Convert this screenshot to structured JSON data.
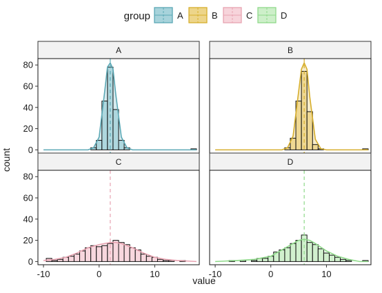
{
  "chart_data": {
    "type": "histogram",
    "xlabel": "value",
    "ylabel": "count",
    "xlim": [
      -11,
      18
    ],
    "ylim": [
      -3,
      86
    ],
    "xticks": [
      -10,
      0,
      10
    ],
    "yticks": [
      0,
      20,
      40,
      60,
      80
    ],
    "bin_width": 1,
    "legend": {
      "title": "group",
      "placement": "top",
      "entries": [
        "A",
        "B",
        "C",
        "D"
      ]
    },
    "panels": [
      {
        "name": "A",
        "color": "#5BA8B5",
        "fill": "#A7D3DB",
        "mean": 2,
        "bins": [
          {
            "x": -1,
            "y": 2
          },
          {
            "x": 0,
            "y": 9
          },
          {
            "x": 1,
            "y": 46
          },
          {
            "x": 2,
            "y": 78
          },
          {
            "x": 3,
            "y": 38
          },
          {
            "x": 4,
            "y": 9
          },
          {
            "x": 5,
            "y": 2
          },
          {
            "x": 17,
            "y": 1
          }
        ],
        "density": [
          [
            -10,
            0
          ],
          [
            -2,
            0
          ],
          [
            -1,
            2
          ],
          [
            0,
            12
          ],
          [
            1,
            55
          ],
          [
            1.5,
            78
          ],
          [
            2,
            82
          ],
          [
            2.5,
            76
          ],
          [
            3,
            52
          ],
          [
            4,
            12
          ],
          [
            5,
            2
          ],
          [
            6,
            0
          ],
          [
            17.5,
            0
          ]
        ]
      },
      {
        "name": "B",
        "color": "#D6AE2C",
        "fill": "#EDD58A",
        "mean": 6,
        "bins": [
          {
            "x": 3,
            "y": 2
          },
          {
            "x": 4,
            "y": 11
          },
          {
            "x": 5,
            "y": 46
          },
          {
            "x": 6,
            "y": 74
          },
          {
            "x": 7,
            "y": 36
          },
          {
            "x": 8,
            "y": 5
          },
          {
            "x": 9,
            "y": 1
          },
          {
            "x": 17,
            "y": 1
          }
        ],
        "density": [
          [
            -10,
            0
          ],
          [
            2,
            0
          ],
          [
            3,
            2
          ],
          [
            4,
            13
          ],
          [
            5,
            55
          ],
          [
            5.5,
            76
          ],
          [
            6,
            82
          ],
          [
            6.5,
            76
          ],
          [
            7,
            50
          ],
          [
            8,
            10
          ],
          [
            9,
            1
          ],
          [
            10,
            0
          ],
          [
            17.5,
            0
          ]
        ]
      },
      {
        "name": "C",
        "color": "#E7A3B1",
        "fill": "#F7D4DB",
        "mean": 2,
        "bins": [
          {
            "x": -9,
            "y": 3
          },
          {
            "x": -8,
            "y": 1
          },
          {
            "x": -7,
            "y": 2
          },
          {
            "x": -6,
            "y": 4
          },
          {
            "x": -5,
            "y": 5
          },
          {
            "x": -4,
            "y": 7
          },
          {
            "x": -3,
            "y": 10
          },
          {
            "x": -2,
            "y": 13
          },
          {
            "x": -1,
            "y": 15
          },
          {
            "x": 0,
            "y": 14
          },
          {
            "x": 1,
            "y": 15
          },
          {
            "x": 2,
            "y": 17
          },
          {
            "x": 3,
            "y": 20
          },
          {
            "x": 4,
            "y": 18
          },
          {
            "x": 5,
            "y": 16
          },
          {
            "x": 6,
            "y": 13
          },
          {
            "x": 7,
            "y": 11
          },
          {
            "x": 8,
            "y": 7
          },
          {
            "x": 9,
            "y": 5
          },
          {
            "x": 10,
            "y": 4
          },
          {
            "x": 11,
            "y": 2
          },
          {
            "x": 12,
            "y": 1
          },
          {
            "x": 13,
            "y": 1
          },
          {
            "x": 15,
            "y": 1
          }
        ],
        "density": [
          [
            -10,
            1
          ],
          [
            -8,
            2
          ],
          [
            -6,
            4
          ],
          [
            -4,
            8
          ],
          [
            -2,
            13
          ],
          [
            0,
            16
          ],
          [
            2,
            18
          ],
          [
            3,
            18
          ],
          [
            4,
            17
          ],
          [
            6,
            13
          ],
          [
            8,
            8
          ],
          [
            10,
            4
          ],
          [
            12,
            2
          ],
          [
            14,
            1
          ],
          [
            17.5,
            0
          ]
        ]
      },
      {
        "name": "D",
        "color": "#8FD98A",
        "fill": "#CDEFC9",
        "mean": 6,
        "bins": [
          {
            "x": -7,
            "y": 1
          },
          {
            "x": -5,
            "y": 1
          },
          {
            "x": -3,
            "y": 1
          },
          {
            "x": -2,
            "y": 3
          },
          {
            "x": -1,
            "y": 3
          },
          {
            "x": 0,
            "y": 5
          },
          {
            "x": 1,
            "y": 9
          },
          {
            "x": 2,
            "y": 11
          },
          {
            "x": 3,
            "y": 13
          },
          {
            "x": 4,
            "y": 17
          },
          {
            "x": 5,
            "y": 20
          },
          {
            "x": 6,
            "y": 25
          },
          {
            "x": 7,
            "y": 18
          },
          {
            "x": 8,
            "y": 16
          },
          {
            "x": 9,
            "y": 12
          },
          {
            "x": 10,
            "y": 8
          },
          {
            "x": 11,
            "y": 6
          },
          {
            "x": 12,
            "y": 4
          },
          {
            "x": 13,
            "y": 2
          },
          {
            "x": 14,
            "y": 1
          },
          {
            "x": 17,
            "y": 1
          }
        ],
        "density": [
          [
            -10,
            0
          ],
          [
            -6,
            1
          ],
          [
            -3,
            2
          ],
          [
            0,
            5
          ],
          [
            2,
            11
          ],
          [
            4,
            17
          ],
          [
            5,
            20
          ],
          [
            6,
            21
          ],
          [
            7,
            20
          ],
          [
            8,
            17
          ],
          [
            10,
            10
          ],
          [
            12,
            5
          ],
          [
            14,
            2
          ],
          [
            16,
            0
          ],
          [
            17.5,
            0
          ]
        ]
      }
    ]
  }
}
